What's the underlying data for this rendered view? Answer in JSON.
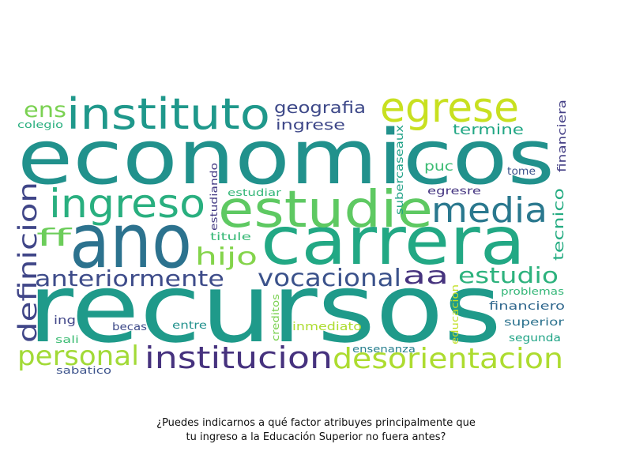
{
  "chart_data": {
    "type": "wordcloud",
    "words": [
      {
        "text": "economicos",
        "color": "#21918c"
      },
      {
        "text": "recursos",
        "color": "#1f9a8a"
      },
      {
        "text": "ano",
        "color": "#2c728e"
      },
      {
        "text": "carrera",
        "color": "#22a884"
      },
      {
        "text": "estudie",
        "color": "#5ec962"
      },
      {
        "text": "instituto",
        "color": "#1f988b"
      },
      {
        "text": "egrese",
        "color": "#c8e020"
      },
      {
        "text": "ingreso",
        "color": "#29af7f"
      },
      {
        "text": "media",
        "color": "#2a788e"
      },
      {
        "text": "institucion",
        "color": "#46327e"
      },
      {
        "text": "desorientacion",
        "color": "#addc30"
      },
      {
        "text": "personal",
        "color": "#a2da37"
      },
      {
        "text": "vocacional",
        "color": "#3b528b"
      },
      {
        "text": "anteriormente",
        "color": "#3e4c8a"
      },
      {
        "text": "definicion",
        "color": "#404688"
      },
      {
        "text": "hijo",
        "color": "#84d44b"
      },
      {
        "text": "estudio",
        "color": "#2db27d"
      },
      {
        "text": "aa",
        "color": "#46337e"
      },
      {
        "text": "ff",
        "color": "#6ccd5a"
      },
      {
        "text": "ens",
        "color": "#7ad151"
      },
      {
        "text": "geografia",
        "color": "#3e4989"
      },
      {
        "text": "ingrese",
        "color": "#3f4889"
      },
      {
        "text": "termine",
        "color": "#22a785"
      },
      {
        "text": "tecnico",
        "color": "#25ac82"
      },
      {
        "text": "financiera",
        "color": "#433e85"
      },
      {
        "text": "subercaseaux",
        "color": "#1fa187"
      },
      {
        "text": "puc",
        "color": "#3dbc74"
      },
      {
        "text": "egresre",
        "color": "#453581"
      },
      {
        "text": "tome",
        "color": "#3b528b"
      },
      {
        "text": "estudiar",
        "color": "#35b779"
      },
      {
        "text": "estudiando",
        "color": "#443b84"
      },
      {
        "text": "titule",
        "color": "#38b977"
      },
      {
        "text": "colegio",
        "color": "#29af7f"
      },
      {
        "text": "financiero",
        "color": "#31688e"
      },
      {
        "text": "problemas",
        "color": "#35b779"
      },
      {
        "text": "superior",
        "color": "#2c728e"
      },
      {
        "text": "segunda",
        "color": "#20a486"
      },
      {
        "text": "creditos",
        "color": "#7ad151"
      },
      {
        "text": "educacion",
        "color": "#c2df23"
      },
      {
        "text": "inmediato",
        "color": "#addc30"
      },
      {
        "text": "ensenanza",
        "color": "#277f8e"
      },
      {
        "text": "entre",
        "color": "#21918c"
      },
      {
        "text": "becas",
        "color": "#3e4a89"
      },
      {
        "text": "ing",
        "color": "#404588"
      },
      {
        "text": "sali",
        "color": "#3dbc74"
      },
      {
        "text": "sabatico",
        "color": "#3b528b"
      }
    ]
  },
  "caption": {
    "line1": "¿Puedes indicarnos a qué factor atribuyes principalmente que",
    "line2": "tu ingreso a la Educación Superior no fuera antes?"
  }
}
